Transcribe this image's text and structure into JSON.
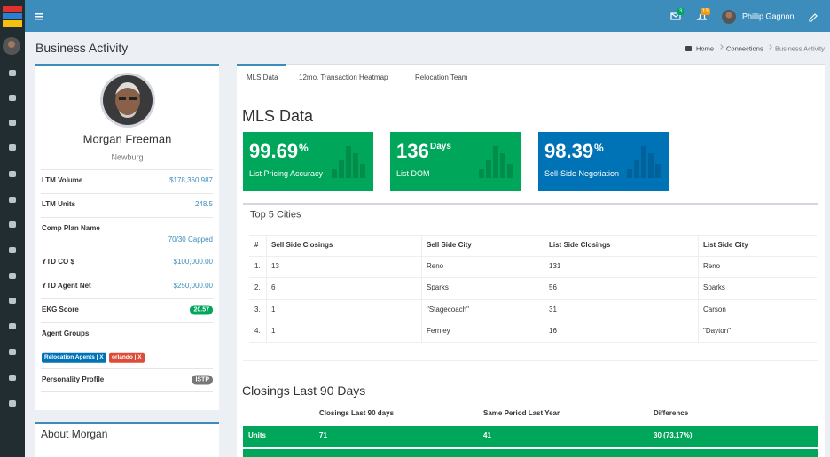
{
  "topbar": {
    "mail_count": "3",
    "notif_count": "13",
    "user": "Phillip Gagnon"
  },
  "page": {
    "title": "Business Activity",
    "breadcrumb": [
      "Home",
      "Connections",
      "Business Activity"
    ]
  },
  "profile": {
    "name": "Morgan Freeman",
    "location": "Newburg",
    "rows": [
      {
        "label": "LTM Volume",
        "value": "$178,360,987"
      },
      {
        "label": "LTM Units",
        "value": "248.5"
      },
      {
        "label": "Comp Plan Name",
        "value": "70/30 Capped"
      },
      {
        "label": "YTD CO $",
        "value": "$100,000.00"
      },
      {
        "label": "YTD Agent Net",
        "value": "$250,000.00"
      },
      {
        "label": "EKG Score",
        "value": "20.57"
      },
      {
        "label": "Agent Groups",
        "tags": [
          "Relocation Agents | X",
          "orlando | X"
        ]
      },
      {
        "label": "Personality Profile",
        "value": "ISTP"
      }
    ]
  },
  "about": {
    "title": "About Morgan"
  },
  "tabs": [
    "MLS Data",
    "12mo. Transaction Heatmap",
    "Relocation Team"
  ],
  "mls": {
    "title": "MLS Data",
    "stats": [
      {
        "value": "99.69",
        "unit": "%",
        "label": "List Pricing Accuracy"
      },
      {
        "value": "136",
        "unit": "Days",
        "label": "List DOM"
      },
      {
        "value": "98.39",
        "unit": "%",
        "label": "Sell-Side Negotiation"
      }
    ]
  },
  "cities": {
    "title": "Top 5 Cities",
    "columns": [
      "#",
      "Sell Side Closings",
      "Sell Side City",
      "List Side Closings",
      "List Side City"
    ],
    "rows": [
      [
        "1.",
        "13",
        "Reno",
        "131",
        "Reno"
      ],
      [
        "2.",
        "6",
        "Sparks",
        "56",
        "Sparks"
      ],
      [
        "3.",
        "1",
        "\"Stagecoach\"",
        "31",
        "Carson"
      ],
      [
        "4.",
        "1",
        "Fernley",
        "16",
        "\"Dayton\""
      ]
    ]
  },
  "closings": {
    "title": "Closings Last 90 Days",
    "columns": [
      "Closings Last 90 days",
      "Same Period Last Year",
      "Difference"
    ],
    "rows": [
      [
        "Units",
        "71",
        "41",
        "30 (73.17%)"
      ]
    ]
  }
}
